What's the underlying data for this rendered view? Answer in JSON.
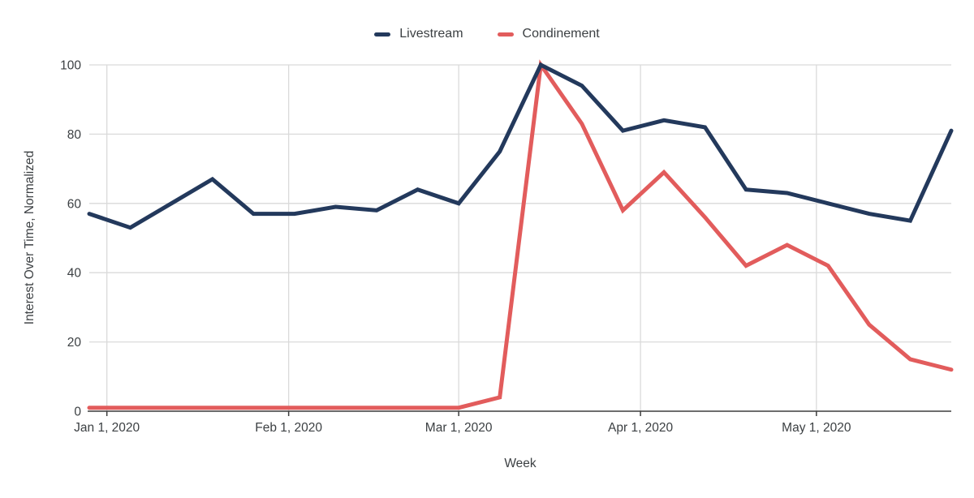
{
  "chart_data": {
    "type": "line",
    "title": "",
    "xlabel": "Week",
    "ylabel": "Interest Over Time, Normalized",
    "ylim": [
      0,
      100
    ],
    "y_ticks": [
      0,
      20,
      40,
      60,
      80,
      100
    ],
    "x_tick_labels": [
      "Jan 1, 2020",
      "Feb 1, 2020",
      "Mar 1, 2020",
      "Apr 1, 2020",
      "May 1, 2020"
    ],
    "grid": true,
    "legend_position": "top-center",
    "x": [
      "Dec 29, 2019",
      "Jan 5, 2020",
      "Jan 12, 2020",
      "Jan 19, 2020",
      "Jan 26, 2020",
      "Feb 2, 2020",
      "Feb 9, 2020",
      "Feb 16, 2020",
      "Feb 23, 2020",
      "Mar 1, 2020",
      "Mar 8, 2020",
      "Mar 15, 2020",
      "Mar 22, 2020",
      "Mar 29, 2020",
      "Apr 5, 2020",
      "Apr 12, 2020",
      "Apr 19, 2020",
      "Apr 26, 2020",
      "May 3, 2020",
      "May 10, 2020",
      "May 17, 2020",
      "May 24, 2020"
    ],
    "series": [
      {
        "name": "Livestream",
        "color": "#23395C",
        "values": [
          57,
          53,
          60,
          67,
          57,
          57,
          59,
          58,
          64,
          60,
          75,
          100,
          94,
          81,
          84,
          82,
          64,
          63,
          60,
          57,
          55,
          81
        ]
      },
      {
        "name": "Condinement",
        "color": "#E25C5C",
        "values": [
          1,
          1,
          1,
          1,
          1,
          1,
          1,
          1,
          1,
          1,
          4,
          100,
          83,
          58,
          69,
          56,
          42,
          48,
          42,
          25,
          15,
          12
        ]
      }
    ],
    "colors": {
      "gridline": "#dadada",
      "axis_line": "#3d3d3d",
      "tick_mark": "#3d3d3d",
      "text": "#3c4043",
      "background": "#ffffff"
    }
  }
}
